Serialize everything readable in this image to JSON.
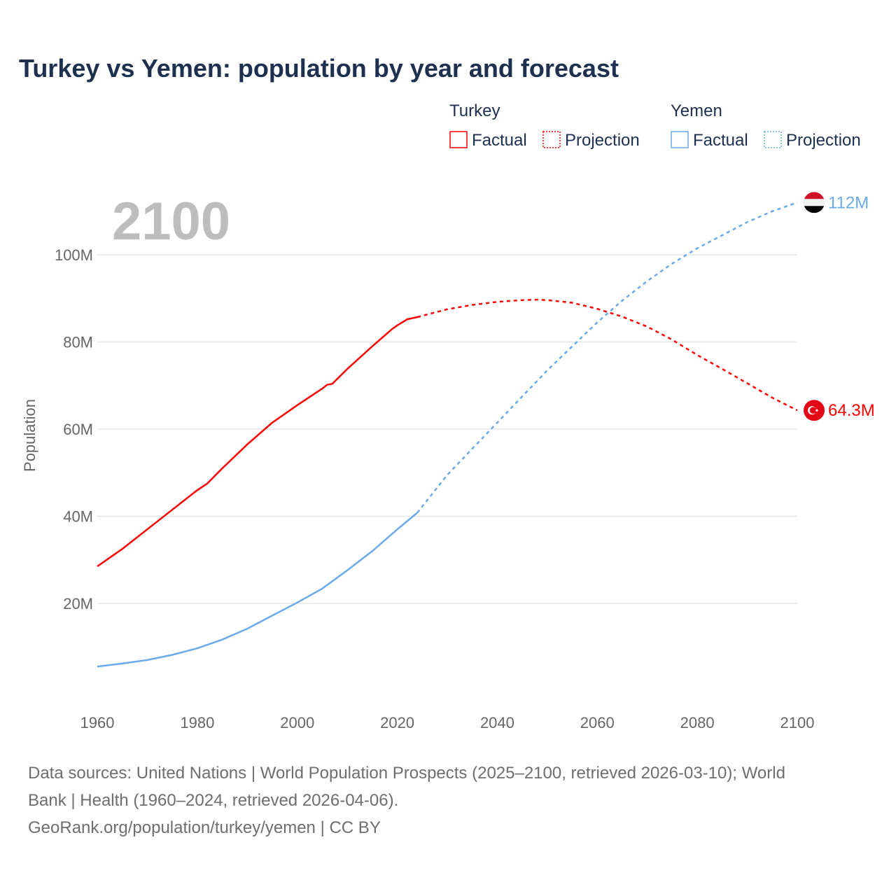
{
  "chart_data": {
    "type": "line",
    "title": "Turkey vs Yemen: population by year and forecast",
    "year_label": "2100",
    "ylabel": "Population",
    "xlabel": "",
    "xlim": [
      1960,
      2100
    ],
    "ylim": [
      0,
      110
    ],
    "x_ticks": [
      "1960",
      "1980",
      "2000",
      "2020",
      "2040",
      "2060",
      "2080",
      "2100"
    ],
    "y_ticks": [
      {
        "v": 20,
        "label": "20M"
      },
      {
        "v": 40,
        "label": "40M"
      },
      {
        "v": 60,
        "label": "60M"
      },
      {
        "v": 80,
        "label": "80M"
      },
      {
        "v": 100,
        "label": "100M"
      }
    ],
    "grid": true,
    "legend": {
      "groups": [
        {
          "name": "Turkey",
          "factual": "Factual",
          "projection": "Projection"
        },
        {
          "name": "Yemen",
          "factual": "Factual",
          "projection": "Projection"
        }
      ],
      "placement": "top-right"
    },
    "series": [
      {
        "name": "Turkey",
        "color": "#ff0000",
        "end_label": "64.3M",
        "flag": "turkey-flag",
        "factual": {
          "x": [
            1960,
            1965,
            1970,
            1975,
            1980,
            1982,
            1985,
            1990,
            1995,
            2000,
            2005,
            2006,
            2007,
            2010,
            2015,
            2019,
            2020,
            2022,
            2024
          ],
          "y": [
            28.5,
            32.5,
            37,
            41.5,
            46,
            47.5,
            51,
            56.5,
            61.5,
            65.5,
            69.3,
            70.2,
            70.4,
            73.8,
            79,
            83,
            83.8,
            85.2,
            85.7
          ]
        },
        "projection": {
          "x": [
            2024,
            2030,
            2035,
            2040,
            2045,
            2048,
            2050,
            2055,
            2060,
            2065,
            2070,
            2075,
            2080,
            2085,
            2090,
            2095,
            2100
          ],
          "y": [
            85.7,
            87.5,
            88.5,
            89.2,
            89.6,
            89.7,
            89.6,
            89,
            87.6,
            85.8,
            83.5,
            80.5,
            77,
            73.8,
            70.5,
            67.2,
            64.3
          ]
        }
      },
      {
        "name": "Yemen",
        "color": "#6aaaea",
        "end_label": "112M",
        "flag": "yemen-flag",
        "factual": {
          "x": [
            1960,
            1965,
            1970,
            1975,
            1980,
            1985,
            1990,
            1995,
            2000,
            2005,
            2010,
            2015,
            2020,
            2024
          ],
          "y": [
            5.5,
            6.2,
            7,
            8.2,
            9.7,
            11.7,
            14.2,
            17.2,
            20.2,
            23.4,
            27.6,
            32,
            37,
            40.8
          ]
        },
        "projection": {
          "x": [
            2024,
            2030,
            2035,
            2040,
            2045,
            2050,
            2055,
            2060,
            2065,
            2070,
            2075,
            2080,
            2085,
            2090,
            2095,
            2100
          ],
          "y": [
            40.8,
            49.5,
            55.5,
            61.5,
            67.5,
            73.5,
            79,
            84.5,
            89.5,
            94,
            98,
            101.5,
            104.5,
            107.5,
            110,
            112
          ]
        }
      }
    ]
  },
  "footer": {
    "line1": "Data sources: United Nations | World Population Prospects (2025–2100, retrieved 2026-03-10); World",
    "line2": "Bank | Health (1960–2024, retrieved 2026-04-06).",
    "line3": "GeoRank.org/population/turkey/yemen | CC BY"
  }
}
